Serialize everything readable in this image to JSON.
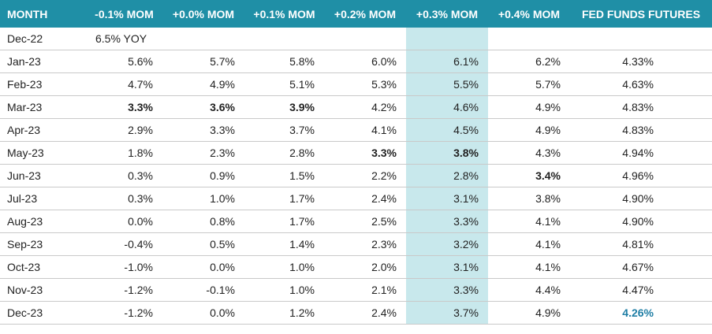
{
  "colors": {
    "header_bg": "#1f8fa6",
    "header_text": "#ffffff",
    "highlight_column": "#c8e8ec",
    "accent_value": "#1f7ea5"
  },
  "header": {
    "month": "MONTH",
    "m01": "-0.1% MOM",
    "p00": "+0.0% MOM",
    "p01": "+0.1% MOM",
    "p02": "+0.2% MOM",
    "p03": "+0.3% MOM",
    "p04": "+0.4% MOM",
    "fed": "FED FUNDS FUTURES"
  },
  "rows": [
    {
      "month": "Dec-22",
      "yoy": "6.5% YOY"
    },
    {
      "month": "Jan-23",
      "m01": "5.6%",
      "p00": "5.7%",
      "p01": "5.8%",
      "p02": "6.0%",
      "p03": "6.1%",
      "p04": "6.2%",
      "fed": "4.33%"
    },
    {
      "month": "Feb-23",
      "m01": "4.7%",
      "p00": "4.9%",
      "p01": "5.1%",
      "p02": "5.3%",
      "p03": "5.5%",
      "p04": "5.7%",
      "fed": "4.63%"
    },
    {
      "month": "Mar-23",
      "m01": "3.3%",
      "p00": "3.6%",
      "p01": "3.9%",
      "p02": "4.2%",
      "p03": "4.6%",
      "p04": "4.9%",
      "fed": "4.83%"
    },
    {
      "month": "Apr-23",
      "m01": "2.9%",
      "p00": "3.3%",
      "p01": "3.7%",
      "p02": "4.1%",
      "p03": "4.5%",
      "p04": "4.9%",
      "fed": "4.83%"
    },
    {
      "month": "May-23",
      "m01": "1.8%",
      "p00": "2.3%",
      "p01": "2.8%",
      "p02": "3.3%",
      "p03": "3.8%",
      "p04": "4.3%",
      "fed": "4.94%"
    },
    {
      "month": "Jun-23",
      "m01": "0.3%",
      "p00": "0.9%",
      "p01": "1.5%",
      "p02": "2.2%",
      "p03": "2.8%",
      "p04": "3.4%",
      "fed": "4.96%"
    },
    {
      "month": "Jul-23",
      "m01": "0.3%",
      "p00": "1.0%",
      "p01": "1.7%",
      "p02": "2.4%",
      "p03": "3.1%",
      "p04": "3.8%",
      "fed": "4.90%"
    },
    {
      "month": "Aug-23",
      "m01": "0.0%",
      "p00": "0.8%",
      "p01": "1.7%",
      "p02": "2.5%",
      "p03": "3.3%",
      "p04": "4.1%",
      "fed": "4.90%"
    },
    {
      "month": "Sep-23",
      "m01": "-0.4%",
      "p00": "0.5%",
      "p01": "1.4%",
      "p02": "2.3%",
      "p03": "3.2%",
      "p04": "4.1%",
      "fed": "4.81%"
    },
    {
      "month": "Oct-23",
      "m01": "-1.0%",
      "p00": "0.0%",
      "p01": "1.0%",
      "p02": "2.0%",
      "p03": "3.1%",
      "p04": "4.1%",
      "fed": "4.67%"
    },
    {
      "month": "Nov-23",
      "m01": "-1.2%",
      "p00": "-0.1%",
      "p01": "1.0%",
      "p02": "2.1%",
      "p03": "3.3%",
      "p04": "4.4%",
      "fed": "4.47%"
    },
    {
      "month": "Dec-23",
      "m01": "-1.2%",
      "p00": "0.0%",
      "p01": "1.2%",
      "p02": "2.4%",
      "p03": "3.7%",
      "p04": "4.9%",
      "fed": "4.26%"
    }
  ]
}
